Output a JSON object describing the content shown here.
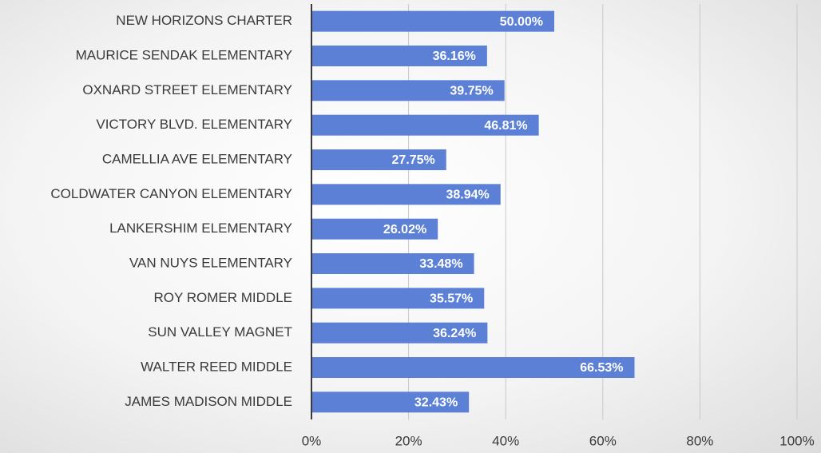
{
  "chart_data": {
    "type": "bar",
    "orientation": "horizontal",
    "categories": [
      "NEW HORIZONS CHARTER",
      "MAURICE SENDAK ELEMENTARY",
      "OXNARD STREET ELEMENTARY",
      "VICTORY BLVD. ELEMENTARY",
      "CAMELLIA AVE ELEMENTARY",
      "COLDWATER CANYON ELEMENTARY",
      "LANKERSHIM ELEMENTARY",
      "VAN NUYS ELEMENTARY",
      "ROY ROMER MIDDLE",
      "SUN VALLEY MAGNET",
      "WALTER REED MIDDLE",
      "JAMES MADISON MIDDLE"
    ],
    "values": [
      50.0,
      36.16,
      39.75,
      46.81,
      27.75,
      38.94,
      26.02,
      33.48,
      35.57,
      36.24,
      66.53,
      32.43
    ],
    "value_labels": [
      "50.00%",
      "36.16%",
      "39.75%",
      "46.81%",
      "27.75%",
      "38.94%",
      "26.02%",
      "33.48%",
      "35.57%",
      "36.24%",
      "66.53%",
      "32.43%"
    ],
    "color": "#5b80d6",
    "xlim": [
      0,
      100
    ],
    "xticks": [
      {
        "value": 0,
        "label": "0%"
      },
      {
        "value": 20,
        "label": "20%"
      },
      {
        "value": 40,
        "label": "40%"
      },
      {
        "value": 60,
        "label": "60%"
      },
      {
        "value": 80,
        "label": "80%"
      },
      {
        "value": 100,
        "label": "100%"
      }
    ],
    "grid": true
  }
}
